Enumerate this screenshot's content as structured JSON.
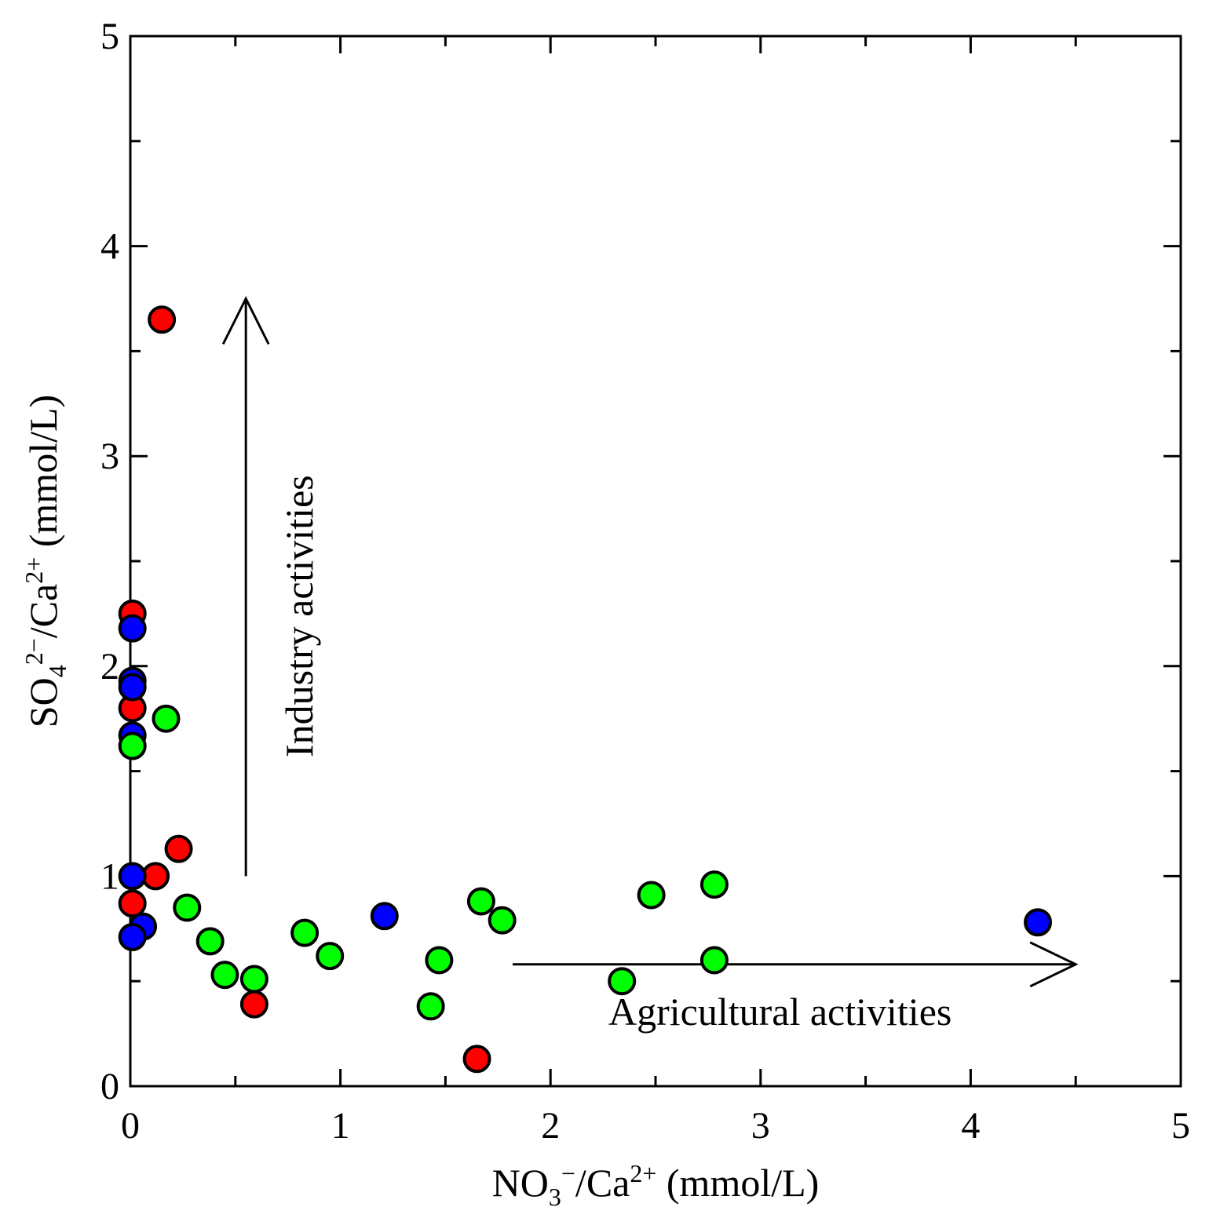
{
  "chart_data": {
    "type": "scatter",
    "title": "",
    "xlabel": {
      "base": "NO",
      "sub": "3",
      "sup": "−",
      "rest1": "/Ca",
      "sup2": "2+",
      "unit": " (mmol/L)"
    },
    "ylabel": {
      "base": "SO",
      "sub": "4",
      "sup": "2−",
      "rest1": "/Ca",
      "sup2": "2+",
      "unit": " (mmol/L)"
    },
    "xlim": [
      0,
      5
    ],
    "ylim": [
      0,
      5
    ],
    "xticks": [
      "0",
      "1",
      "2",
      "3",
      "4",
      "5"
    ],
    "yticks": [
      "0",
      "1",
      "2",
      "3",
      "4",
      "5"
    ],
    "grid": false,
    "series": [
      {
        "name": "red",
        "color": "#ff0000",
        "points": [
          [
            0.15,
            3.65
          ],
          [
            0.01,
            2.25
          ],
          [
            0.01,
            1.8
          ],
          [
            0.23,
            1.13
          ],
          [
            0.12,
            1.0
          ],
          [
            0.01,
            0.87
          ],
          [
            0.59,
            0.39
          ],
          [
            1.65,
            0.13
          ]
        ]
      },
      {
        "name": "blue",
        "color": "#0000ff",
        "points": [
          [
            0.01,
            2.18
          ],
          [
            0.01,
            1.93
          ],
          [
            0.01,
            1.9
          ],
          [
            0.01,
            1.67
          ],
          [
            0.01,
            1.0
          ],
          [
            0.06,
            0.76
          ],
          [
            0.01,
            0.71
          ],
          [
            1.21,
            0.81
          ],
          [
            4.32,
            0.78
          ]
        ]
      },
      {
        "name": "green",
        "color": "#00ff00",
        "points": [
          [
            0.17,
            1.75
          ],
          [
            0.01,
            1.62
          ],
          [
            0.27,
            0.85
          ],
          [
            0.38,
            0.69
          ],
          [
            0.45,
            0.53
          ],
          [
            0.59,
            0.51
          ],
          [
            0.83,
            0.73
          ],
          [
            0.95,
            0.62
          ],
          [
            1.43,
            0.38
          ],
          [
            1.47,
            0.6
          ],
          [
            1.67,
            0.88
          ],
          [
            1.77,
            0.79
          ],
          [
            2.34,
            0.5
          ],
          [
            2.48,
            0.91
          ],
          [
            2.78,
            0.96
          ],
          [
            2.78,
            0.6
          ]
        ]
      }
    ],
    "annotations": {
      "industry": {
        "text": "Industry activities",
        "arrow_from": [
          0.55,
          1.0
        ],
        "arrow_to": [
          0.55,
          3.75
        ]
      },
      "agriculture": {
        "text": "Agricultural activities",
        "arrow_from": [
          1.82,
          0.58
        ],
        "arrow_to": [
          4.5,
          0.58
        ]
      }
    }
  }
}
